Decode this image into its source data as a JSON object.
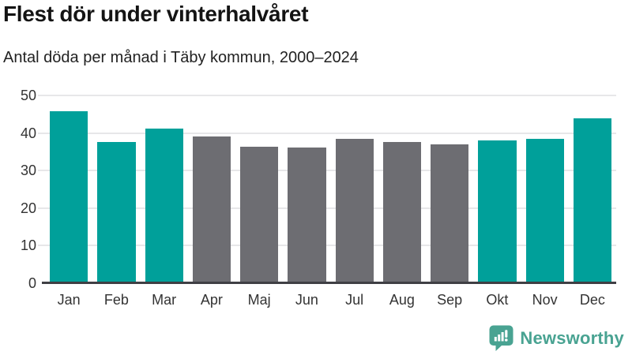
{
  "title": "Flest dör under vinterhalvåret",
  "subtitle": "Antal döda per månad i Täby kommun, 2000–2024",
  "colors": {
    "highlight": "#00a09a",
    "muted": "#6d6d72",
    "grid": "#e7e7e9",
    "axis": "#3f3f44",
    "title_text": "#141414",
    "tick_text": "#333333",
    "brand": "#49a392"
  },
  "chart_data": {
    "type": "bar",
    "categories": [
      "Jan",
      "Feb",
      "Mar",
      "Apr",
      "Maj",
      "Jun",
      "Jul",
      "Aug",
      "Sep",
      "Okt",
      "Nov",
      "Dec"
    ],
    "values": [
      45.8,
      37.6,
      41.2,
      39.0,
      36.4,
      36.1,
      38.5,
      37.6,
      37.0,
      37.9,
      38.5,
      43.8
    ],
    "highlighted": [
      true,
      true,
      true,
      false,
      false,
      false,
      false,
      false,
      false,
      true,
      true,
      true
    ],
    "title": "Flest dör under vinterhalvåret",
    "subtitle": "Antal döda per månad i Täby kommun, 2000–2024",
    "xlabel": "",
    "ylabel": "",
    "ylim": [
      0,
      50
    ],
    "yticks": [
      0,
      10,
      20,
      30,
      40,
      50
    ],
    "grid": true,
    "legend": false,
    "highlight_meaning": "winter-half-year months in teal, summer-half-year months in gray"
  },
  "footer": {
    "brand": "Newsworthy",
    "logo_icon": "speech-bubble-with-bar-chart-and-exclamation"
  }
}
